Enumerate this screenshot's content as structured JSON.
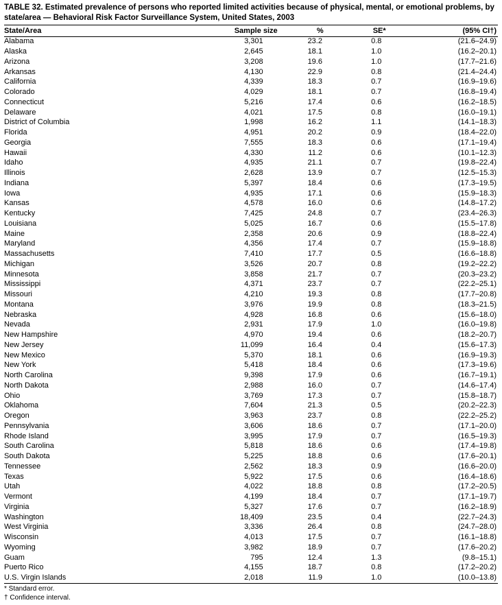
{
  "title": "TABLE 32. Estimated prevalence of persons who reported limited activities because of physical, mental, or emotional problems, by state/area — Behavioral Risk Factor Surveillance System, United States, 2003",
  "columns": {
    "state": "State/Area",
    "sample": "Sample size",
    "pct": "%",
    "se": "SE*",
    "ci": "(95% CI†)"
  },
  "rows": [
    {
      "state": "Alabama",
      "sample": "3,301",
      "pct": "23.2",
      "se": "0.8",
      "ci": "(21.6–24.9)"
    },
    {
      "state": "Alaska",
      "sample": "2,645",
      "pct": "18.1",
      "se": "1.0",
      "ci": "(16.2–20.1)"
    },
    {
      "state": "Arizona",
      "sample": "3,208",
      "pct": "19.6",
      "se": "1.0",
      "ci": "(17.7–21.6)"
    },
    {
      "state": "Arkansas",
      "sample": "4,130",
      "pct": "22.9",
      "se": "0.8",
      "ci": "(21.4–24.4)"
    },
    {
      "state": "California",
      "sample": "4,339",
      "pct": "18.3",
      "se": "0.7",
      "ci": "(16.9–19.6)"
    },
    {
      "state": "Colorado",
      "sample": "4,029",
      "pct": "18.1",
      "se": "0.7",
      "ci": "(16.8–19.4)"
    },
    {
      "state": "Connecticut",
      "sample": "5,216",
      "pct": "17.4",
      "se": "0.6",
      "ci": "(16.2–18.5)"
    },
    {
      "state": "Delaware",
      "sample": "4,021",
      "pct": "17.5",
      "se": "0.8",
      "ci": "(16.0–19.1)"
    },
    {
      "state": "District of Columbia",
      "sample": "1,998",
      "pct": "16.2",
      "se": "1.1",
      "ci": "(14.1–18.3)"
    },
    {
      "state": "Florida",
      "sample": "4,951",
      "pct": "20.2",
      "se": "0.9",
      "ci": "(18.4–22.0)"
    },
    {
      "state": "Georgia",
      "sample": "7,555",
      "pct": "18.3",
      "se": "0.6",
      "ci": "(17.1–19.4)"
    },
    {
      "state": "Hawaii",
      "sample": "4,330",
      "pct": "11.2",
      "se": "0.6",
      "ci": "(10.1–12.3)"
    },
    {
      "state": "Idaho",
      "sample": "4,935",
      "pct": "21.1",
      "se": "0.7",
      "ci": "(19.8–22.4)"
    },
    {
      "state": "Illinois",
      "sample": "2,628",
      "pct": "13.9",
      "se": "0.7",
      "ci": "(12.5–15.3)"
    },
    {
      "state": "Indiana",
      "sample": "5,397",
      "pct": "18.4",
      "se": "0.6",
      "ci": "(17.3–19.5)"
    },
    {
      "state": "Iowa",
      "sample": "4,935",
      "pct": "17.1",
      "se": "0.6",
      "ci": "(15.9–18.3)"
    },
    {
      "state": "Kansas",
      "sample": "4,578",
      "pct": "16.0",
      "se": "0.6",
      "ci": "(14.8–17.2)"
    },
    {
      "state": "Kentucky",
      "sample": "7,425",
      "pct": "24.8",
      "se": "0.7",
      "ci": "(23.4–26.3)"
    },
    {
      "state": "Louisiana",
      "sample": "5,025",
      "pct": "16.7",
      "se": "0.6",
      "ci": "(15.5–17.8)"
    },
    {
      "state": "Maine",
      "sample": "2,358",
      "pct": "20.6",
      "se": "0.9",
      "ci": "(18.8–22.4)"
    },
    {
      "state": "Maryland",
      "sample": "4,356",
      "pct": "17.4",
      "se": "0.7",
      "ci": "(15.9–18.8)"
    },
    {
      "state": "Massachusetts",
      "sample": "7,410",
      "pct": "17.7",
      "se": "0.5",
      "ci": "(16.6–18.8)"
    },
    {
      "state": "Michigan",
      "sample": "3,526",
      "pct": "20.7",
      "se": "0.8",
      "ci": "(19.2–22.2)"
    },
    {
      "state": "Minnesota",
      "sample": "3,858",
      "pct": "21.7",
      "se": "0.7",
      "ci": "(20.3–23.2)"
    },
    {
      "state": "Mississippi",
      "sample": "4,371",
      "pct": "23.7",
      "se": "0.7",
      "ci": "(22.2–25.1)"
    },
    {
      "state": "Missouri",
      "sample": "4,210",
      "pct": "19.3",
      "se": "0.8",
      "ci": "(17.7–20.8)"
    },
    {
      "state": "Montana",
      "sample": "3,976",
      "pct": "19.9",
      "se": "0.8",
      "ci": "(18.3–21.5)"
    },
    {
      "state": "Nebraska",
      "sample": "4,928",
      "pct": "16.8",
      "se": "0.6",
      "ci": "(15.6–18.0)"
    },
    {
      "state": "Nevada",
      "sample": "2,931",
      "pct": "17.9",
      "se": "1.0",
      "ci": "(16.0–19.8)"
    },
    {
      "state": "New Hampshire",
      "sample": "4,970",
      "pct": "19.4",
      "se": "0.6",
      "ci": "(18.2–20.7)"
    },
    {
      "state": "New Jersey",
      "sample": "11,099",
      "pct": "16.4",
      "se": "0.4",
      "ci": "(15.6–17.3)"
    },
    {
      "state": "New Mexico",
      "sample": "5,370",
      "pct": "18.1",
      "se": "0.6",
      "ci": "(16.9–19.3)"
    },
    {
      "state": "New York",
      "sample": "5,418",
      "pct": "18.4",
      "se": "0.6",
      "ci": "(17.3–19.6)"
    },
    {
      "state": "North Carolina",
      "sample": "9,398",
      "pct": "17.9",
      "se": "0.6",
      "ci": "(16.7–19.1)"
    },
    {
      "state": "North Dakota",
      "sample": "2,988",
      "pct": "16.0",
      "se": "0.7",
      "ci": "(14.6–17.4)"
    },
    {
      "state": "Ohio",
      "sample": "3,769",
      "pct": "17.3",
      "se": "0.7",
      "ci": "(15.8–18.7)"
    },
    {
      "state": "Oklahoma",
      "sample": "7,604",
      "pct": "21.3",
      "se": "0.5",
      "ci": "(20.2–22.3)"
    },
    {
      "state": "Oregon",
      "sample": "3,963",
      "pct": "23.7",
      "se": "0.8",
      "ci": "(22.2–25.2)"
    },
    {
      "state": "Pennsylvania",
      "sample": "3,606",
      "pct": "18.6",
      "se": "0.7",
      "ci": "(17.1–20.0)"
    },
    {
      "state": "Rhode Island",
      "sample": "3,995",
      "pct": "17.9",
      "se": "0.7",
      "ci": "(16.5–19.3)"
    },
    {
      "state": "South Carolina",
      "sample": "5,818",
      "pct": "18.6",
      "se": "0.6",
      "ci": "(17.4–19.8)"
    },
    {
      "state": "South Dakota",
      "sample": "5,225",
      "pct": "18.8",
      "se": "0.6",
      "ci": "(17.6–20.1)"
    },
    {
      "state": "Tennessee",
      "sample": "2,562",
      "pct": "18.3",
      "se": "0.9",
      "ci": "(16.6–20.0)"
    },
    {
      "state": "Texas",
      "sample": "5,922",
      "pct": "17.5",
      "se": "0.6",
      "ci": "(16.4–18.6)"
    },
    {
      "state": "Utah",
      "sample": "4,022",
      "pct": "18.8",
      "se": "0.8",
      "ci": "(17.2–20.5)"
    },
    {
      "state": "Vermont",
      "sample": "4,199",
      "pct": "18.4",
      "se": "0.7",
      "ci": "(17.1–19.7)"
    },
    {
      "state": "Virginia",
      "sample": "5,327",
      "pct": "17.6",
      "se": "0.7",
      "ci": "(16.2–18.9)"
    },
    {
      "state": "Washington",
      "sample": "18,409",
      "pct": "23.5",
      "se": "0.4",
      "ci": "(22.7–24.3)"
    },
    {
      "state": "West Virginia",
      "sample": "3,336",
      "pct": "26.4",
      "se": "0.8",
      "ci": "(24.7–28.0)"
    },
    {
      "state": "Wisconsin",
      "sample": "4,013",
      "pct": "17.5",
      "se": "0.7",
      "ci": "(16.1–18.8)"
    },
    {
      "state": "Wyoming",
      "sample": "3,982",
      "pct": "18.9",
      "se": "0.7",
      "ci": "(17.6–20.2)"
    },
    {
      "state": "Guam",
      "sample": "795",
      "pct": "12.4",
      "se": "1.3",
      "ci": "(9.8–15.1)"
    },
    {
      "state": "Puerto Rico",
      "sample": "4,155",
      "pct": "18.7",
      "se": "0.8",
      "ci": "(17.2–20.2)"
    },
    {
      "state": "U.S. Virgin Islands",
      "sample": "2,018",
      "pct": "11.9",
      "se": "1.0",
      "ci": "(10.0–13.8)"
    }
  ],
  "footnotes": {
    "se": "* Standard error.",
    "ci": "† Confidence interval."
  }
}
